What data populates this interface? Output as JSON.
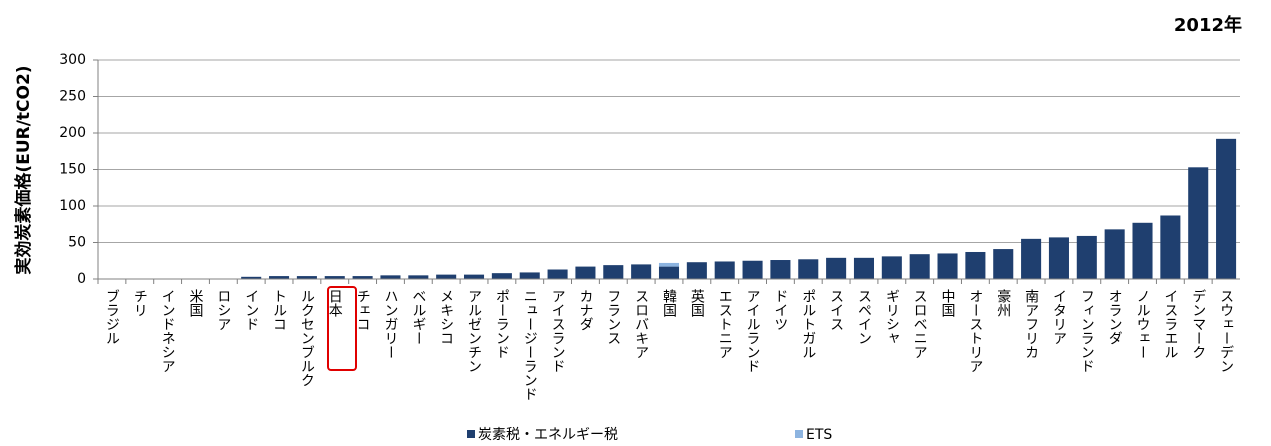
{
  "chart_data": {
    "type": "stacked_bar",
    "annotation": "2012年",
    "y_axis_label": "実効炭素価格(EUR/tCO2)",
    "categories": [
      "ブラジル",
      "チリ",
      "インドネシア",
      "米国",
      "ロシア",
      "インド",
      "トルコ",
      "ルクセンブルク",
      "日本",
      "チェコ",
      "ハンガリー",
      "ベルギー",
      "メキシコ",
      "アルゼンチン",
      "ポーランド",
      "ニュージーランド",
      "アイスランド",
      "カナダ",
      "フランス",
      "スロバキア",
      "韓国",
      "英国",
      "エストニア",
      "アイルランド",
      "ドイツ",
      "ポルトガル",
      "スイス",
      "スペイン",
      "ギリシャ",
      "スロベニア",
      "中国",
      "オーストリア",
      "豪州",
      "南アフリカ",
      "イタリア",
      "フィンランド",
      "オランダ",
      "ノルウェー",
      "イスラエル",
      "デンマーク",
      "スウェーデン"
    ],
    "series": [
      {
        "name": "炭素税・エネルギー税",
        "color": "#1f3f6f",
        "values": [
          0,
          0,
          0,
          0,
          0,
          3,
          4,
          4,
          4,
          4,
          5,
          5,
          6,
          6,
          8,
          9,
          13,
          17,
          19,
          20,
          17,
          23,
          24,
          25,
          26,
          27,
          29,
          29,
          31,
          34,
          35,
          37,
          41,
          55,
          57,
          59,
          68,
          77,
          87,
          153,
          192
        ]
      },
      {
        "name": "ETS",
        "color": "#8db4e0",
        "values": [
          0,
          0,
          0,
          0,
          0,
          0,
          0,
          0,
          0,
          0,
          0,
          0,
          0,
          0,
          0,
          0,
          0,
          0,
          0,
          0,
          5,
          0,
          0,
          0,
          0,
          0,
          0,
          0,
          0,
          0,
          0,
          0,
          0,
          0,
          0,
          0,
          0,
          0,
          0,
          0,
          0
        ]
      }
    ],
    "ylim": [
      0,
      300
    ],
    "yticks": [
      0,
      50,
      100,
      150,
      200,
      250,
      300
    ],
    "grid": true
  }
}
